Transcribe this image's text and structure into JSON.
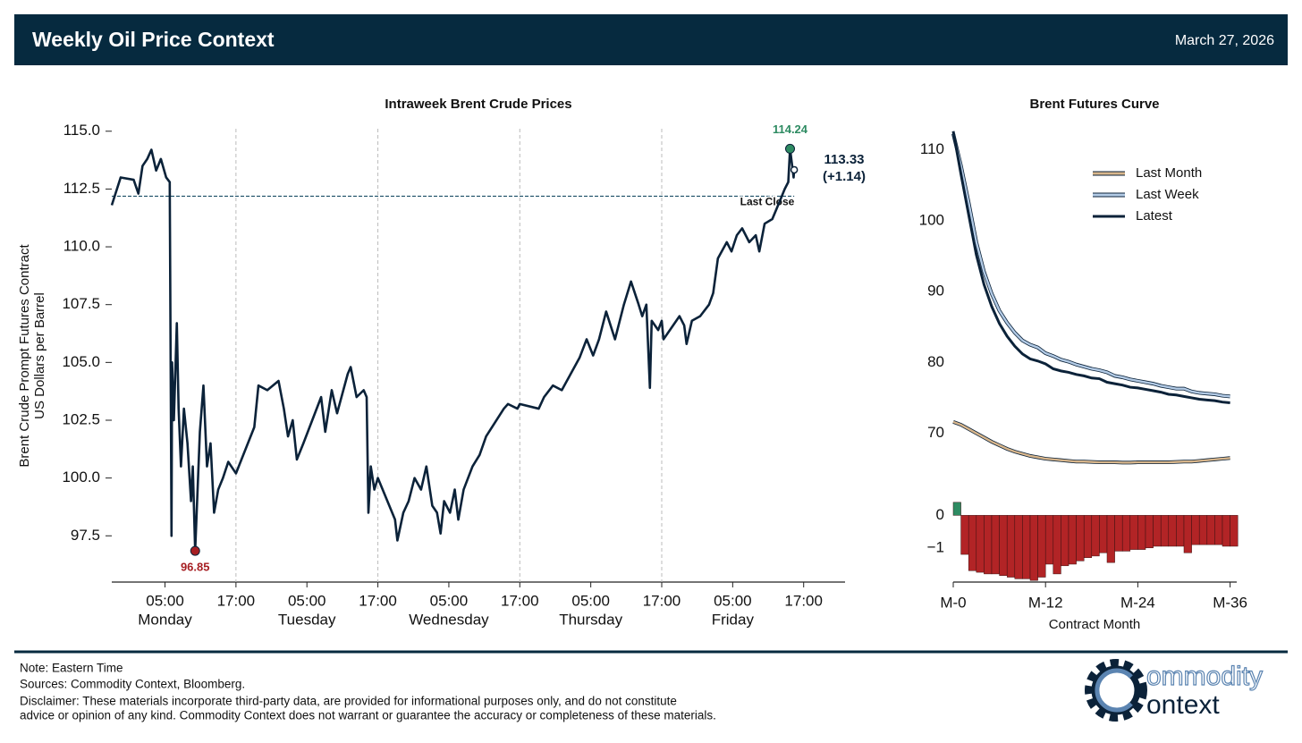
{
  "header": {
    "title": "Weekly Oil Price Context",
    "date": "March 27, 2026"
  },
  "chart_data": [
    {
      "type": "line",
      "title": "Intraweek Brent Crude Prices",
      "y_label": [
        "Brent Crude Prompt Futures Contract",
        "US Dollars per Barrel"
      ],
      "color": "#0b2239",
      "x": [
        -4,
        -2.5,
        -0.3,
        0.5,
        1.2,
        2,
        2.7,
        3.5,
        4.3,
        5.2,
        5.8,
        6.1,
        6.2,
        6.5,
        7,
        7.3,
        7.7,
        8.2,
        8.8,
        9.4,
        9.7,
        10.1,
        10.9,
        11.5,
        12.1,
        12.7,
        13.3,
        14,
        14.8,
        15.7,
        17,
        20.1,
        20.8,
        22.3,
        24.2,
        25.1,
        25.8,
        26.6,
        27.3,
        28.4,
        29.9,
        31.4,
        32.1,
        33.2,
        34.1,
        35.9,
        36.4,
        37.4,
        38.6,
        39.1,
        39.4,
        39.8,
        40.4,
        41,
        43.9,
        44.3,
        45.3,
        46.2,
        47.2,
        48.3,
        49.2,
        50.2,
        51,
        51.6,
        52.2,
        53.2,
        54,
        54.6,
        55.5,
        57,
        58.2,
        59.3,
        60.8,
        62.3,
        63,
        64.6,
        65,
        68.2,
        69.1,
        70.6,
        72.1,
        73.6,
        75.1,
        76.3,
        77.4,
        78.4,
        79.6,
        81.1,
        82.6,
        83.8,
        85.1,
        85.7,
        86.4,
        87,
        87.3,
        88.4,
        89,
        89.3,
        92,
        92.8,
        93.2,
        94.1,
        95.5,
        97,
        97.7,
        98.5,
        100,
        100.8,
        101.7,
        102.6,
        103.8,
        104.9,
        105.5,
        106.4,
        107.7,
        109,
        109.8,
        110.4,
        110.7,
        111.3,
        111.4
      ],
      "values": [
        111.8,
        113,
        112.9,
        112.3,
        113.5,
        113.8,
        114.2,
        113.3,
        113.8,
        113,
        112.8,
        97.5,
        105,
        102.5,
        106.7,
        103,
        100.5,
        103,
        101.5,
        99,
        100.5,
        96.85,
        102,
        104,
        100.5,
        101.5,
        98.5,
        99.5,
        100,
        100.7,
        100.2,
        102.2,
        104,
        103.8,
        104.2,
        103,
        101.8,
        102.5,
        100.8,
        101.5,
        102.5,
        103.5,
        102,
        103.8,
        102.8,
        104.5,
        104.8,
        103.5,
        103.8,
        103.5,
        98.5,
        100.5,
        99.5,
        100,
        98.2,
        97.3,
        98.5,
        99,
        100,
        99.5,
        100.5,
        98.8,
        98.5,
        97.6,
        99,
        98.5,
        99.5,
        98.2,
        99.5,
        100.5,
        101,
        101.8,
        102.4,
        103,
        103.2,
        103,
        103.2,
        103,
        103.5,
        104,
        103.8,
        104.5,
        105.2,
        106,
        105.3,
        106,
        107.2,
        106,
        107.5,
        108.5,
        107.5,
        107,
        107.5,
        103.9,
        106.8,
        106.4,
        106.8,
        106,
        107,
        106.6,
        105.8,
        106.8,
        107,
        107.5,
        108,
        109.5,
        110.2,
        109.8,
        110.5,
        110.8,
        110.2,
        110.5,
        109.8,
        111,
        111.2,
        112,
        112.5,
        112.8,
        114.24,
        113,
        113.33
      ],
      "high": 114.24,
      "high_color": "#2e8b62",
      "low": 96.85,
      "low_color": "#a61e22",
      "last": 113.33,
      "change": {
        "value": 1.14,
        "label": "(+1.14)"
      },
      "last_close": 112.19,
      "last_close_label": "Last Close",
      "xlim": [
        -4,
        120
      ],
      "ylim": [
        95.5,
        115.3
      ],
      "xticks": [
        {
          "value": 5,
          "label": "05:00"
        },
        {
          "value": 17,
          "label": "17:00"
        },
        {
          "value": 29,
          "label": "05:00"
        },
        {
          "value": 41,
          "label": "17:00"
        },
        {
          "value": 53,
          "label": "05:00"
        },
        {
          "value": 65,
          "label": "17:00"
        },
        {
          "value": 77,
          "label": "05:00"
        },
        {
          "value": 89,
          "label": "17:00"
        },
        {
          "value": 101,
          "label": "05:00"
        },
        {
          "value": 113,
          "label": "17:00"
        }
      ],
      "day_labels": [
        {
          "value": 5,
          "label": "Monday"
        },
        {
          "value": 29,
          "label": "Tuesday"
        },
        {
          "value": 53,
          "label": "Wednesday"
        },
        {
          "value": 77,
          "label": "Thursday"
        },
        {
          "value": 101,
          "label": "Friday"
        }
      ],
      "vlines": [
        17,
        41,
        65,
        89
      ],
      "yticks": [
        97.5,
        {
          "value": 100,
          "label": "100.0"
        },
        102.5,
        {
          "value": 105,
          "label": "105.0"
        },
        107.5,
        {
          "value": 110,
          "label": "110.0"
        },
        112.5,
        {
          "value": 115,
          "label": "115.0"
        }
      ]
    },
    {
      "type": "line",
      "title": "Brent Futures Curve",
      "x_label": "Contract Month",
      "x": [
        0,
        1,
        2,
        3,
        4,
        5,
        6,
        7,
        8,
        9,
        10,
        11,
        12,
        13,
        14,
        15,
        16,
        17,
        18,
        19,
        20,
        21,
        22,
        23,
        24,
        25,
        26,
        27,
        28,
        29,
        30,
        31,
        32,
        33,
        34,
        35,
        36
      ],
      "series": [
        {
          "name": "Last Month",
          "color": "#d8b68c",
          "values": [
            71.6,
            71.2,
            70.6,
            70,
            69.4,
            68.8,
            68.3,
            67.8,
            67.4,
            67.1,
            66.8,
            66.6,
            66.4,
            66.3,
            66.2,
            66.1,
            66,
            66,
            65.95,
            65.9,
            65.9,
            65.9,
            65.85,
            65.85,
            65.9,
            65.9,
            65.9,
            65.9,
            65.9,
            65.95,
            66,
            66,
            66.1,
            66.2,
            66.3,
            66.4,
            66.5
          ]
        },
        {
          "name": "Last Week",
          "color": "#b3cbe6",
          "values": [
            112.3,
            107.8,
            102.6,
            97,
            92.8,
            89.7,
            87.3,
            85.6,
            84.2,
            83.1,
            82.5,
            82.1,
            81.3,
            80.9,
            80.4,
            80.1,
            79.7,
            79.4,
            79.1,
            78.9,
            78.6,
            78.1,
            77.9,
            77.6,
            77.4,
            77.2,
            77,
            76.7,
            76.5,
            76.3,
            76.3,
            75.9,
            75.7,
            75.6,
            75.5,
            75.3,
            75.2
          ]
        },
        {
          "name": "Latest",
          "color": "#0b2239",
          "values": [
            112.65,
            106.6,
            100.9,
            95.2,
            91,
            87.9,
            85.5,
            83.7,
            82.3,
            81.2,
            80.5,
            80.2,
            79.8,
            79.1,
            78.8,
            78.6,
            78.3,
            78.1,
            77.8,
            77.7,
            77.2,
            77,
            76.8,
            76.5,
            76.4,
            76.2,
            76,
            75.8,
            75.5,
            75.4,
            75.2,
            75,
            74.8,
            74.7,
            74.6,
            74.4,
            74.3
          ]
        }
      ],
      "xlim": [
        0,
        36
      ],
      "ylim": [
        63,
        113.5
      ],
      "xticks": [
        {
          "value": 0,
          "label": "M-0"
        },
        {
          "value": 12,
          "label": "M-12"
        },
        {
          "value": 24,
          "label": "M-24"
        },
        {
          "value": 36,
          "label": "M-36"
        }
      ],
      "yticks": [
        70,
        80,
        90,
        100,
        110
      ],
      "spread": {
        "values": [
          0.4,
          -1.2,
          -1.7,
          -1.75,
          -1.8,
          -1.8,
          -1.85,
          -1.9,
          -1.95,
          -1.95,
          -2.0,
          -1.9,
          -1.5,
          -1.8,
          -1.55,
          -1.5,
          -1.4,
          -1.3,
          -1.25,
          -1.15,
          -1.45,
          -1.1,
          -1.1,
          -1.05,
          -1.05,
          -1,
          -0.95,
          -0.95,
          -0.95,
          -0.95,
          -1.15,
          -0.9,
          -0.9,
          -0.9,
          -0.9,
          -0.95,
          -0.95
        ],
        "positive_color": "#2e8b62",
        "negative_color": "#b22426",
        "ylim": [
          -2.05,
          0.45
        ],
        "yticks": [
          0,
          {
            "value": -1,
            "label": "−1"
          }
        ]
      },
      "legend": "upper right"
    }
  ],
  "footer": {
    "note": "Note: Eastern Time",
    "sources": "Sources: Commodity Context, Bloomberg.",
    "disclaimer": [
      "Disclaimer: These materials incorporate third-party data, are provided for informational purposes only, and do not constitute",
      "advice or opinion of any kind. Commodity Context does not warrant or guarantee the accuracy or completeness of these materials."
    ],
    "logo": [
      "ommodity",
      "ontext"
    ]
  }
}
